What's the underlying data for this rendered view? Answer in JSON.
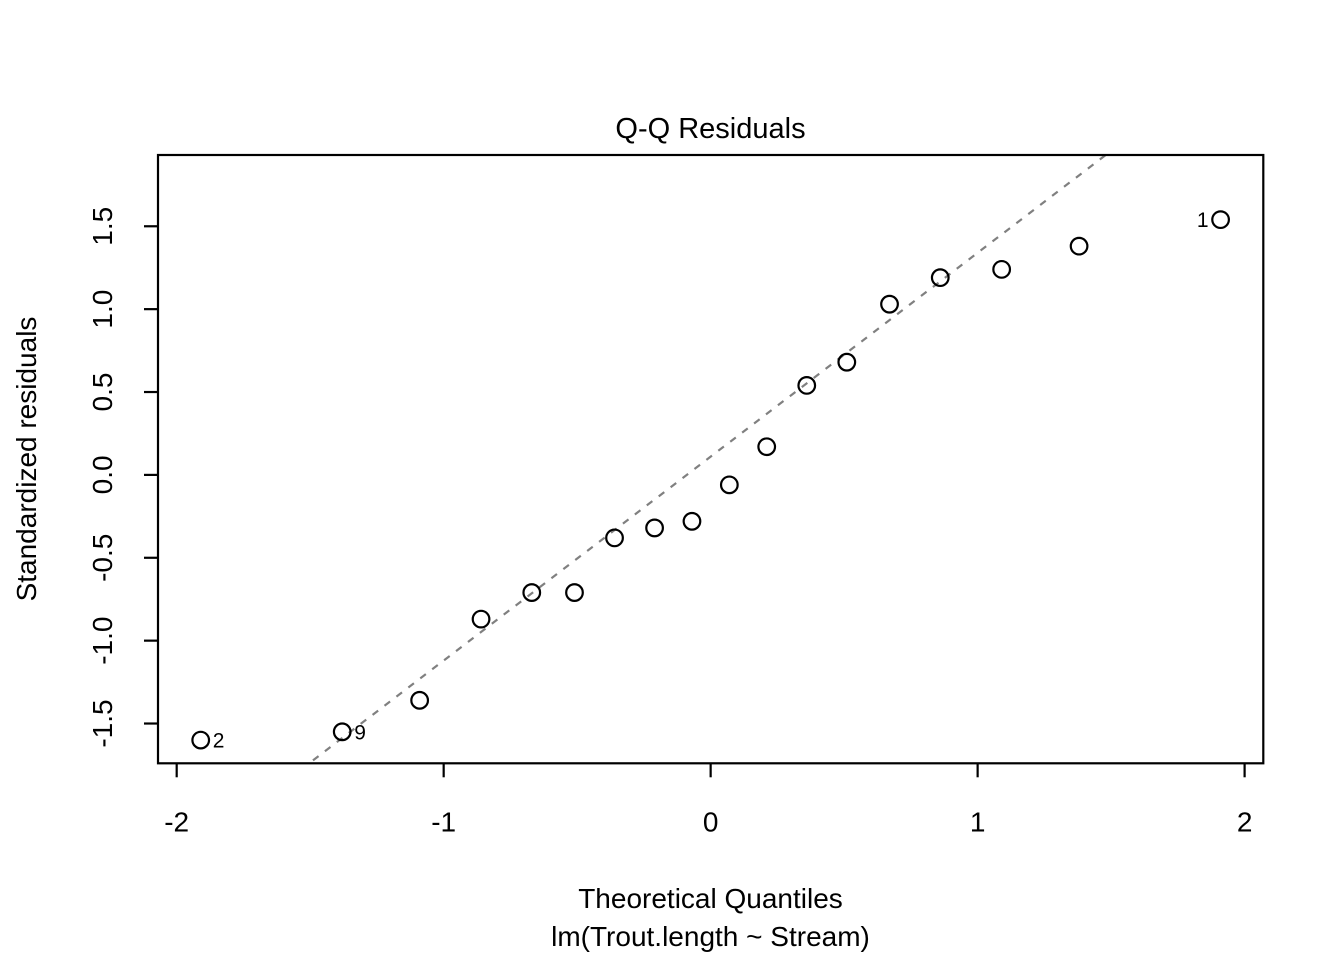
{
  "chart_data": {
    "type": "scatter",
    "title": "Q-Q Residuals",
    "xlabel": "Theoretical Quantiles",
    "xlabel_sub": "lm(Trout.length ~ Stream)",
    "ylabel": "Standardized residuals",
    "xlim": [
      -2.07,
      2.07
    ],
    "ylim": [
      -1.74,
      1.93
    ],
    "grid": false,
    "legend": null,
    "x_tick_labels": [
      "-2",
      "-1",
      "0",
      "1",
      "2"
    ],
    "x_tick_values": [
      -2,
      -1,
      0,
      1,
      2
    ],
    "y_tick_labels": [
      "-1.5",
      "-1.0",
      "-0.5",
      "0.0",
      "0.5",
      "1.0",
      "1.5"
    ],
    "y_tick_values": [
      -1.5,
      -1.0,
      -0.5,
      0.0,
      0.5,
      1.0,
      1.5
    ],
    "point_style": {
      "shape": "open-circle",
      "color": "#000000"
    },
    "ref_line": {
      "style": "dashed",
      "color": "#808080",
      "slope": 1.23,
      "intercept": 0.11
    },
    "points": [
      {
        "x": -1.91,
        "y": -1.6,
        "label": "2",
        "label_side": "right"
      },
      {
        "x": -1.38,
        "y": -1.55,
        "label": "9",
        "label_side": "right"
      },
      {
        "x": -1.09,
        "y": -1.36
      },
      {
        "x": -0.86,
        "y": -0.87
      },
      {
        "x": -0.67,
        "y": -0.71
      },
      {
        "x": -0.51,
        "y": -0.71
      },
      {
        "x": -0.36,
        "y": -0.38
      },
      {
        "x": -0.21,
        "y": -0.32
      },
      {
        "x": -0.07,
        "y": -0.28
      },
      {
        "x": 0.07,
        "y": -0.06
      },
      {
        "x": 0.21,
        "y": 0.17
      },
      {
        "x": 0.36,
        "y": 0.54
      },
      {
        "x": 0.51,
        "y": 0.68
      },
      {
        "x": 0.67,
        "y": 1.03
      },
      {
        "x": 0.86,
        "y": 1.19
      },
      {
        "x": 1.09,
        "y": 1.24
      },
      {
        "x": 1.38,
        "y": 1.38
      },
      {
        "x": 1.91,
        "y": 1.54,
        "label": "1",
        "label_side": "left"
      }
    ]
  }
}
